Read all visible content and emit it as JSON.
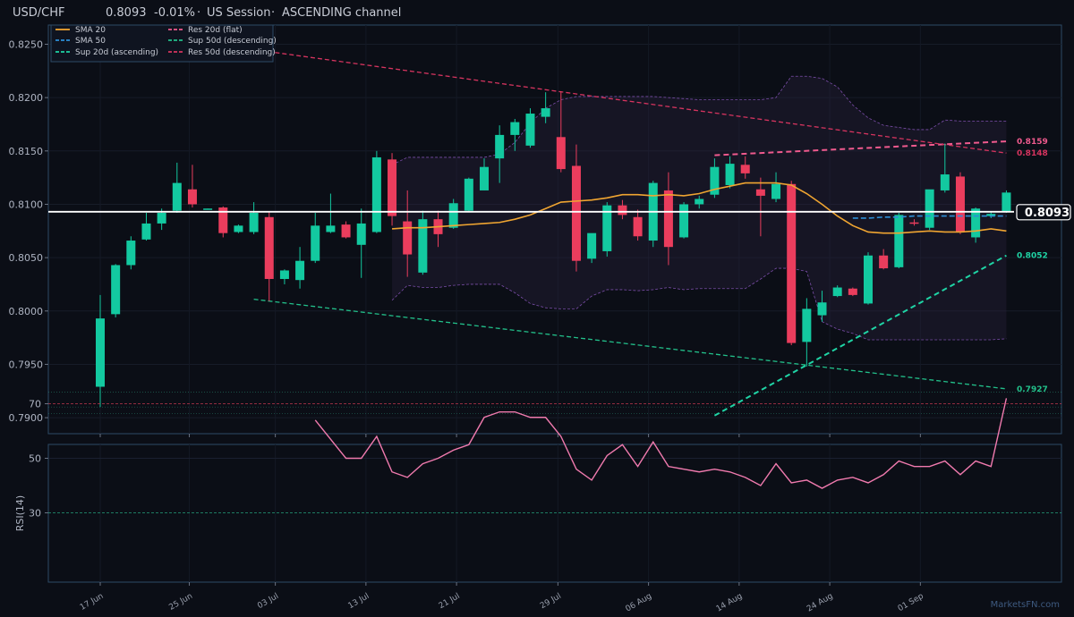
{
  "title": {
    "symbol": "USD/CHF",
    "price": "0.8093",
    "change": "-0.01%",
    "session": "US Session",
    "channel": "ASCENDING channel"
  },
  "watermark": "MarketsFN.com",
  "colors": {
    "background": "#0b0e16",
    "panel_border": "#2c4a66",
    "up": "#13c9a0",
    "down": "#ea3d5d",
    "sma20": "#f0a531",
    "sma50": "#2d8fd8",
    "sup20": "#1fd4a5",
    "sup50": "#22c08a",
    "res20": "#f05a8e",
    "res50": "#d6345f",
    "rsi": "#f07aae",
    "band": "#7a4da8",
    "price_line": "#ffffff"
  },
  "chart_data": [
    {
      "type": "candlestick",
      "x_ticks": [
        "17 Jun",
        "25 Jun",
        "03 Jul",
        "13 Jul",
        "21 Jul",
        "29 Jul",
        "06 Aug",
        "14 Aug",
        "24 Aug",
        "01 Sep"
      ],
      "ylim": [
        0.7885,
        0.8268
      ],
      "y_ticks": [
        "0.7900",
        "0.7950",
        "0.8000",
        "0.8050",
        "0.8100",
        "0.8150",
        "0.8200",
        "0.8250"
      ],
      "candles": [
        {
          "o": 0.7929,
          "h": 0.8015,
          "l": 0.791,
          "c": 0.7993
        },
        {
          "o": 0.7997,
          "h": 0.8044,
          "l": 0.7994,
          "c": 0.8043
        },
        {
          "o": 0.8043,
          "h": 0.807,
          "l": 0.8039,
          "c": 0.8066
        },
        {
          "o": 0.8067,
          "h": 0.8092,
          "l": 0.8066,
          "c": 0.8082
        },
        {
          "o": 0.8082,
          "h": 0.8096,
          "l": 0.8076,
          "c": 0.8092
        },
        {
          "o": 0.8094,
          "h": 0.8139,
          "l": 0.8092,
          "c": 0.812
        },
        {
          "o": 0.8114,
          "h": 0.8137,
          "l": 0.8097,
          "c": 0.81
        },
        {
          "o": 0.8095,
          "h": 0.8096,
          "l": 0.8095,
          "c": 0.8096
        },
        {
          "o": 0.8097,
          "h": 0.8098,
          "l": 0.8069,
          "c": 0.8073
        },
        {
          "o": 0.8074,
          "h": 0.8081,
          "l": 0.8073,
          "c": 0.808
        },
        {
          "o": 0.8074,
          "h": 0.8102,
          "l": 0.8072,
          "c": 0.8092
        },
        {
          "o": 0.8088,
          "h": 0.8093,
          "l": 0.8009,
          "c": 0.803
        },
        {
          "o": 0.803,
          "h": 0.8039,
          "l": 0.8025,
          "c": 0.8038
        },
        {
          "o": 0.8029,
          "h": 0.806,
          "l": 0.8021,
          "c": 0.8047
        },
        {
          "o": 0.8047,
          "h": 0.8092,
          "l": 0.8045,
          "c": 0.808
        },
        {
          "o": 0.8074,
          "h": 0.811,
          "l": 0.8073,
          "c": 0.808
        },
        {
          "o": 0.8081,
          "h": 0.8084,
          "l": 0.8068,
          "c": 0.8069
        },
        {
          "o": 0.8062,
          "h": 0.8096,
          "l": 0.8031,
          "c": 0.8082
        },
        {
          "o": 0.8074,
          "h": 0.815,
          "l": 0.8073,
          "c": 0.8144
        },
        {
          "o": 0.8142,
          "h": 0.8148,
          "l": 0.808,
          "c": 0.8089
        },
        {
          "o": 0.8084,
          "h": 0.8113,
          "l": 0.8032,
          "c": 0.8053
        },
        {
          "o": 0.8036,
          "h": 0.8094,
          "l": 0.8034,
          "c": 0.8086
        },
        {
          "o": 0.8086,
          "h": 0.8094,
          "l": 0.806,
          "c": 0.8072
        },
        {
          "o": 0.8078,
          "h": 0.8105,
          "l": 0.8077,
          "c": 0.8101
        },
        {
          "o": 0.8094,
          "h": 0.8125,
          "l": 0.8093,
          "c": 0.8124
        },
        {
          "o": 0.8113,
          "h": 0.8143,
          "l": 0.8113,
          "c": 0.8135
        },
        {
          "o": 0.8143,
          "h": 0.8174,
          "l": 0.812,
          "c": 0.8165
        },
        {
          "o": 0.8165,
          "h": 0.818,
          "l": 0.815,
          "c": 0.8177
        },
        {
          "o": 0.8155,
          "h": 0.819,
          "l": 0.8153,
          "c": 0.8185
        },
        {
          "o": 0.8182,
          "h": 0.8205,
          "l": 0.8176,
          "c": 0.819
        },
        {
          "o": 0.8163,
          "h": 0.8206,
          "l": 0.813,
          "c": 0.8133
        },
        {
          "o": 0.8136,
          "h": 0.8156,
          "l": 0.8037,
          "c": 0.8047
        },
        {
          "o": 0.8049,
          "h": 0.8072,
          "l": 0.8045,
          "c": 0.8073
        },
        {
          "o": 0.8056,
          "h": 0.8102,
          "l": 0.8051,
          "c": 0.8099
        },
        {
          "o": 0.8099,
          "h": 0.8104,
          "l": 0.8086,
          "c": 0.809
        },
        {
          "o": 0.8088,
          "h": 0.8095,
          "l": 0.8066,
          "c": 0.807
        },
        {
          "o": 0.8066,
          "h": 0.8122,
          "l": 0.806,
          "c": 0.812
        },
        {
          "o": 0.8113,
          "h": 0.813,
          "l": 0.8043,
          "c": 0.806
        },
        {
          "o": 0.8069,
          "h": 0.8102,
          "l": 0.8068,
          "c": 0.81
        },
        {
          "o": 0.81,
          "h": 0.8108,
          "l": 0.8096,
          "c": 0.8105
        },
        {
          "o": 0.8109,
          "h": 0.8143,
          "l": 0.8106,
          "c": 0.8135
        },
        {
          "o": 0.8118,
          "h": 0.8145,
          "l": 0.8115,
          "c": 0.8138
        },
        {
          "o": 0.8137,
          "h": 0.8145,
          "l": 0.8124,
          "c": 0.8129
        },
        {
          "o": 0.8114,
          "h": 0.8125,
          "l": 0.807,
          "c": 0.8108
        },
        {
          "o": 0.8105,
          "h": 0.813,
          "l": 0.8102,
          "c": 0.8119
        },
        {
          "o": 0.8119,
          "h": 0.8122,
          "l": 0.7968,
          "c": 0.797
        },
        {
          "o": 0.7971,
          "h": 0.8012,
          "l": 0.7948,
          "c": 0.8002
        },
        {
          "o": 0.7996,
          "h": 0.8019,
          "l": 0.799,
          "c": 0.8008
        },
        {
          "o": 0.8014,
          "h": 0.8024,
          "l": 0.8013,
          "c": 0.8022
        },
        {
          "o": 0.8021,
          "h": 0.8022,
          "l": 0.8014,
          "c": 0.8015
        },
        {
          "o": 0.8007,
          "h": 0.8055,
          "l": 0.8006,
          "c": 0.8052
        },
        {
          "o": 0.8052,
          "h": 0.8058,
          "l": 0.8039,
          "c": 0.804
        },
        {
          "o": 0.8041,
          "h": 0.8092,
          "l": 0.804,
          "c": 0.809
        },
        {
          "o": 0.8083,
          "h": 0.8086,
          "l": 0.808,
          "c": 0.8082
        },
        {
          "o": 0.8078,
          "h": 0.8113,
          "l": 0.8076,
          "c": 0.8114
        },
        {
          "o": 0.8113,
          "h": 0.8157,
          "l": 0.8111,
          "c": 0.8128
        },
        {
          "o": 0.8126,
          "h": 0.813,
          "l": 0.8072,
          "c": 0.8074
        },
        {
          "o": 0.8069,
          "h": 0.8097,
          "l": 0.8064,
          "c": 0.8096
        },
        {
          "o": 0.8089,
          "h": 0.8093,
          "l": 0.8087,
          "c": 0.8091
        },
        {
          "o": 0.8093,
          "h": 0.8113,
          "l": 0.8092,
          "c": 0.8111
        }
      ],
      "sma20": {
        "start_index": 19,
        "values": [
          0.8077,
          0.8078,
          0.8078,
          0.8079,
          0.808,
          0.8081,
          0.8082,
          0.8083,
          0.8086,
          0.809,
          0.8096,
          0.8102,
          0.8103,
          0.8104,
          0.8106,
          0.8109,
          0.8109,
          0.8108,
          0.8109,
          0.8108,
          0.811,
          0.8114,
          0.8117,
          0.812,
          0.812,
          0.812,
          0.8118,
          0.811,
          0.81,
          0.8089,
          0.808,
          0.8074,
          0.8073,
          0.8073,
          0.8074,
          0.8075,
          0.8074,
          0.8074,
          0.8075,
          0.8077,
          0.8075
        ]
      },
      "sma50": {
        "start_index": 49,
        "values": [
          0.8087,
          0.8087,
          0.8088,
          0.8088,
          0.8089,
          0.8089,
          0.8089,
          0.8089,
          0.8089,
          0.8089,
          0.8089
        ]
      },
      "bands": {
        "start_index": 19,
        "upper": [
          0.8137,
          0.8144,
          0.8144,
          0.8144,
          0.8144,
          0.8144,
          0.8144,
          0.8147,
          0.8158,
          0.8176,
          0.819,
          0.8198,
          0.8201,
          0.8201,
          0.8201,
          0.8201,
          0.8201,
          0.8201,
          0.82,
          0.8199,
          0.8198,
          0.8198,
          0.8198,
          0.8198,
          0.8198,
          0.82,
          0.822,
          0.822,
          0.8218,
          0.821,
          0.8193,
          0.8181,
          0.8174,
          0.8172,
          0.817,
          0.817,
          0.8179,
          0.8178,
          0.8178,
          0.8178,
          0.8178
        ],
        "lower": [
          0.801,
          0.8024,
          0.8022,
          0.8022,
          0.8024,
          0.8025,
          0.8025,
          0.8025,
          0.8017,
          0.8007,
          0.8003,
          0.8002,
          0.8002,
          0.8014,
          0.802,
          0.802,
          0.8019,
          0.802,
          0.8022,
          0.802,
          0.8021,
          0.8021,
          0.8021,
          0.8021,
          0.803,
          0.804,
          0.804,
          0.8037,
          0.799,
          0.7983,
          0.7979,
          0.7973,
          0.7973,
          0.7973,
          0.7973,
          0.7973,
          0.7973,
          0.7973,
          0.7973,
          0.7973,
          0.7974
        ]
      },
      "lines": [
        {
          "name": "Res 20d (flat)",
          "from": [
            40,
            0.8146
          ],
          "to": [
            59,
            0.8159
          ],
          "label": "0.8159"
        },
        {
          "name": "Res 50d (descending)",
          "from": [
            10,
            0.8245
          ],
          "to": [
            59,
            0.8148
          ],
          "label": "0.8148"
        },
        {
          "name": "Sup 20d (ascending)",
          "from": [
            40,
            0.7902
          ],
          "to": [
            59,
            0.8052
          ],
          "label": "0.8052"
        },
        {
          "name": "Sup 50d (descending)",
          "from": [
            10,
            0.8011
          ],
          "to": [
            59,
            0.7927
          ],
          "label": "0.7927"
        }
      ],
      "price_line": {
        "value": 0.8093,
        "label": "0.8093"
      },
      "horizontal_levels": [
        0.7924,
        0.791,
        0.7904
      ],
      "legend": [
        {
          "label": "SMA 20",
          "key": "sma20",
          "dash": "solid"
        },
        {
          "label": "SMA 50",
          "key": "sma50",
          "dash": "dash"
        },
        {
          "label": "Sup 20d (ascending)",
          "key": "sup20",
          "dash": "dash"
        },
        {
          "label": "Res 20d (flat)",
          "key": "res20",
          "dash": "dash"
        },
        {
          "label": "Sup 50d (descending)",
          "key": "sup50",
          "dash": "dash"
        },
        {
          "label": "Res 50d (descending)",
          "key": "res50",
          "dash": "dash"
        }
      ],
      "legend_position": "top-left",
      "grid": true
    },
    {
      "type": "line",
      "ylabel": "RSI(14)",
      "ylim": [
        0,
        100
      ],
      "y_ticks": [
        "30",
        "50",
        "70"
      ],
      "levels": [
        30,
        70
      ],
      "rsi": {
        "start_index": 14,
        "values": [
          64,
          57,
          50,
          50,
          58,
          45,
          43,
          48,
          50,
          53,
          55,
          65,
          67,
          67,
          65,
          65,
          58,
          46,
          42,
          51,
          55,
          47,
          56,
          47,
          46,
          45,
          46,
          45,
          43,
          40,
          48,
          41,
          42,
          39,
          42,
          43,
          41,
          44,
          49,
          47,
          47,
          49,
          44,
          49,
          47,
          72
        ]
      }
    }
  ]
}
